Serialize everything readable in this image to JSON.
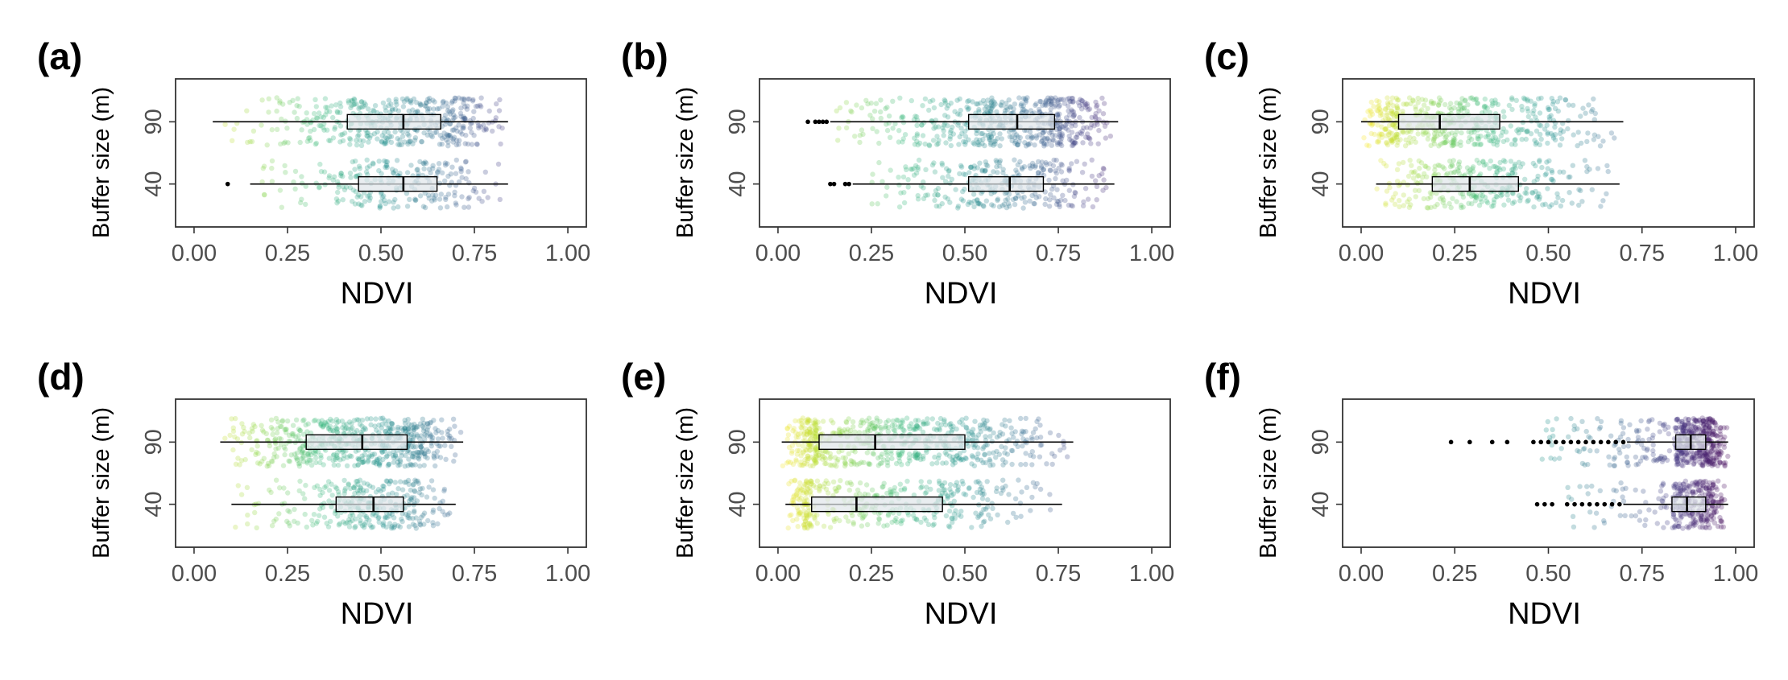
{
  "figure": {
    "x_axis_title": "NDVI",
    "y_axis_title": "Buffer size (m)"
  },
  "chart_data": [
    {
      "type": "scatter",
      "panel": "(a)",
      "xlabel": "NDVI",
      "ylabel": "Buffer size (m)",
      "xlim": [
        0,
        1
      ],
      "x_ticks": [
        "0.00",
        "0.25",
        "0.50",
        "0.75",
        "1.00"
      ],
      "y_ticks": [
        "40",
        "90"
      ],
      "grid": false,
      "series": [
        {
          "category": "90",
          "min": 0.05,
          "q1": 0.41,
          "median": 0.56,
          "q3": 0.66,
          "max": 0.84,
          "outliers": [],
          "point_range": [
            0.05,
            0.84
          ],
          "n_points": 420
        },
        {
          "category": "40",
          "min": 0.15,
          "q1": 0.44,
          "median": 0.56,
          "q3": 0.65,
          "max": 0.84,
          "outliers": [
            0.09
          ],
          "point_range": [
            0.15,
            0.84
          ],
          "n_points": 230
        }
      ]
    },
    {
      "type": "scatter",
      "panel": "(b)",
      "xlabel": "NDVI",
      "ylabel": "Buffer size (m)",
      "xlim": [
        0,
        1
      ],
      "x_ticks": [
        "0.00",
        "0.25",
        "0.50",
        "0.75",
        "1.00"
      ],
      "y_ticks": [
        "40",
        "90"
      ],
      "grid": false,
      "series": [
        {
          "category": "90",
          "min": 0.14,
          "q1": 0.51,
          "median": 0.64,
          "q3": 0.74,
          "max": 0.91,
          "outliers": [
            0.08,
            0.1,
            0.11,
            0.12,
            0.13
          ],
          "point_range": [
            0.14,
            0.91
          ],
          "n_points": 520
        },
        {
          "category": "40",
          "min": 0.2,
          "q1": 0.51,
          "median": 0.62,
          "q3": 0.71,
          "max": 0.9,
          "outliers": [
            0.14,
            0.15,
            0.18,
            0.19
          ],
          "point_range": [
            0.2,
            0.9
          ],
          "n_points": 300
        }
      ]
    },
    {
      "type": "scatter",
      "panel": "(c)",
      "xlabel": "NDVI",
      "ylabel": "Buffer size (m)",
      "xlim": [
        0,
        1
      ],
      "x_ticks": [
        "0.00",
        "0.25",
        "0.50",
        "0.75",
        "1.00"
      ],
      "y_ticks": [
        "40",
        "90"
      ],
      "grid": false,
      "series": [
        {
          "category": "90",
          "min": 0.0,
          "q1": 0.1,
          "median": 0.21,
          "q3": 0.37,
          "max": 0.7,
          "outliers": [],
          "point_range": [
            0.0,
            0.7
          ],
          "n_points": 480
        },
        {
          "category": "40",
          "min": 0.04,
          "q1": 0.19,
          "median": 0.29,
          "q3": 0.42,
          "max": 0.69,
          "outliers": [],
          "point_range": [
            0.04,
            0.69
          ],
          "n_points": 300
        }
      ]
    },
    {
      "type": "scatter",
      "panel": "(d)",
      "xlabel": "NDVI",
      "ylabel": "Buffer size (m)",
      "xlim": [
        0,
        1
      ],
      "x_ticks": [
        "0.00",
        "0.25",
        "0.50",
        "0.75",
        "1.00"
      ],
      "y_ticks": [
        "40",
        "90"
      ],
      "grid": false,
      "series": [
        {
          "category": "90",
          "min": 0.07,
          "q1": 0.3,
          "median": 0.45,
          "q3": 0.57,
          "max": 0.72,
          "outliers": [],
          "point_range": [
            0.07,
            0.72
          ],
          "n_points": 560
        },
        {
          "category": "40",
          "min": 0.1,
          "q1": 0.38,
          "median": 0.48,
          "q3": 0.56,
          "max": 0.7,
          "outliers": [],
          "point_range": [
            0.1,
            0.7
          ],
          "n_points": 300
        }
      ]
    },
    {
      "type": "scatter",
      "panel": "(e)",
      "xlabel": "NDVI",
      "ylabel": "Buffer size (m)",
      "xlim": [
        0,
        1
      ],
      "x_ticks": [
        "0.00",
        "0.25",
        "0.50",
        "0.75",
        "1.00"
      ],
      "y_ticks": [
        "40",
        "90"
      ],
      "grid": false,
      "series": [
        {
          "category": "90",
          "min": 0.01,
          "q1": 0.11,
          "median": 0.26,
          "q3": 0.5,
          "max": 0.79,
          "outliers": [],
          "point_range": [
            0.01,
            0.79
          ],
          "n_points": 620
        },
        {
          "category": "40",
          "min": 0.02,
          "q1": 0.09,
          "median": 0.21,
          "q3": 0.44,
          "max": 0.76,
          "outliers": [],
          "point_range": [
            0.02,
            0.76
          ],
          "n_points": 380
        }
      ]
    },
    {
      "type": "scatter",
      "panel": "(f)",
      "xlabel": "NDVI",
      "ylabel": "Buffer size (m)",
      "xlim": [
        0,
        1
      ],
      "x_ticks": [
        "0.00",
        "0.25",
        "0.50",
        "0.75",
        "1.00"
      ],
      "y_ticks": [
        "40",
        "90"
      ],
      "grid": false,
      "series": [
        {
          "category": "90",
          "min": 0.71,
          "q1": 0.84,
          "median": 0.88,
          "q3": 0.92,
          "max": 0.98,
          "outliers": [
            0.24,
            0.29,
            0.35,
            0.39,
            0.46,
            0.48,
            0.5,
            0.52,
            0.54,
            0.56,
            0.58,
            0.6,
            0.62,
            0.64,
            0.66,
            0.68,
            0.7
          ],
          "point_range": [
            0.45,
            0.98
          ],
          "n_points": 480
        },
        {
          "category": "40",
          "min": 0.7,
          "q1": 0.83,
          "median": 0.87,
          "q3": 0.92,
          "max": 0.98,
          "outliers": [
            0.47,
            0.49,
            0.51,
            0.55,
            0.57,
            0.59,
            0.61,
            0.63,
            0.65,
            0.67,
            0.69
          ],
          "point_range": [
            0.5,
            0.98
          ],
          "n_points": 300
        }
      ]
    }
  ],
  "colors": {
    "viridis_low": "#fde725",
    "viridis_mid_low": "#5ec962",
    "viridis_mid": "#21918c",
    "viridis_mid_high": "#3b528b",
    "viridis_high": "#440154",
    "box_fill": "#dfe5e9",
    "box_line": "#000000",
    "outlier": "#000000",
    "panel_border": "#333333",
    "tick_text": "#4d4d4d"
  }
}
